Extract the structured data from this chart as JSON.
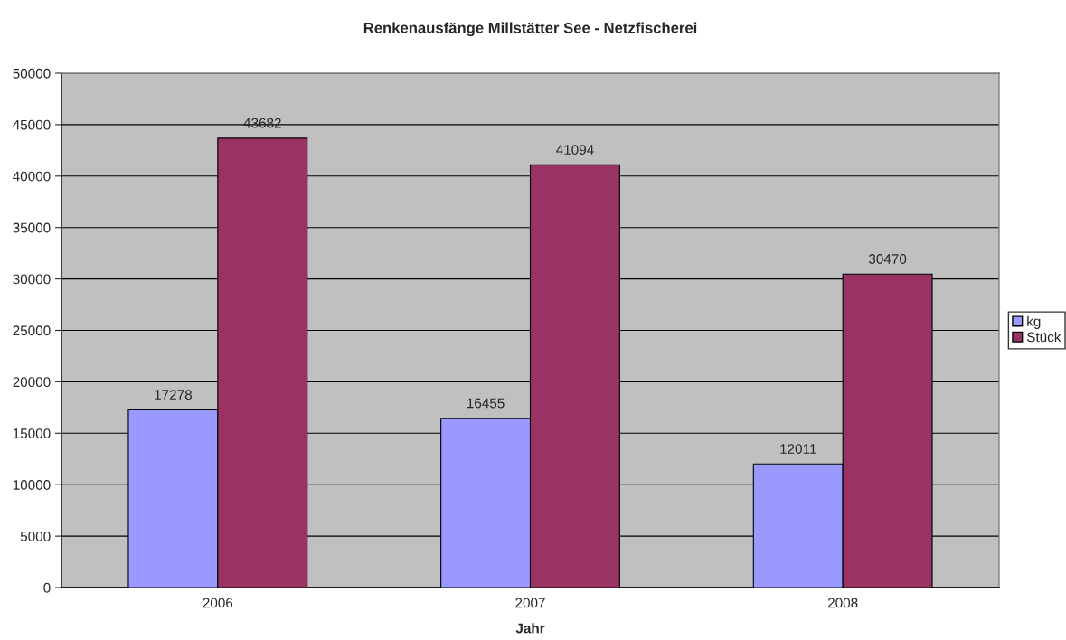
{
  "chart_data": {
    "type": "bar",
    "title": "Renkenausfänge Millstätter See - Netzfischerei",
    "xlabel": "Jahr",
    "categories": [
      "2006",
      "2007",
      "2008"
    ],
    "series": [
      {
        "name": "kg",
        "color": "#9999ff",
        "values": [
          17278,
          16455,
          12011
        ]
      },
      {
        "name": "Stück",
        "color": "#993366",
        "values": [
          43682,
          41094,
          30470
        ]
      }
    ],
    "ylim": [
      0,
      50000
    ],
    "yticks": [
      0,
      5000,
      10000,
      15000,
      20000,
      25000,
      30000,
      35000,
      40000,
      45000,
      50000
    ],
    "grid": "y",
    "legend": "right",
    "data_labels": true
  }
}
